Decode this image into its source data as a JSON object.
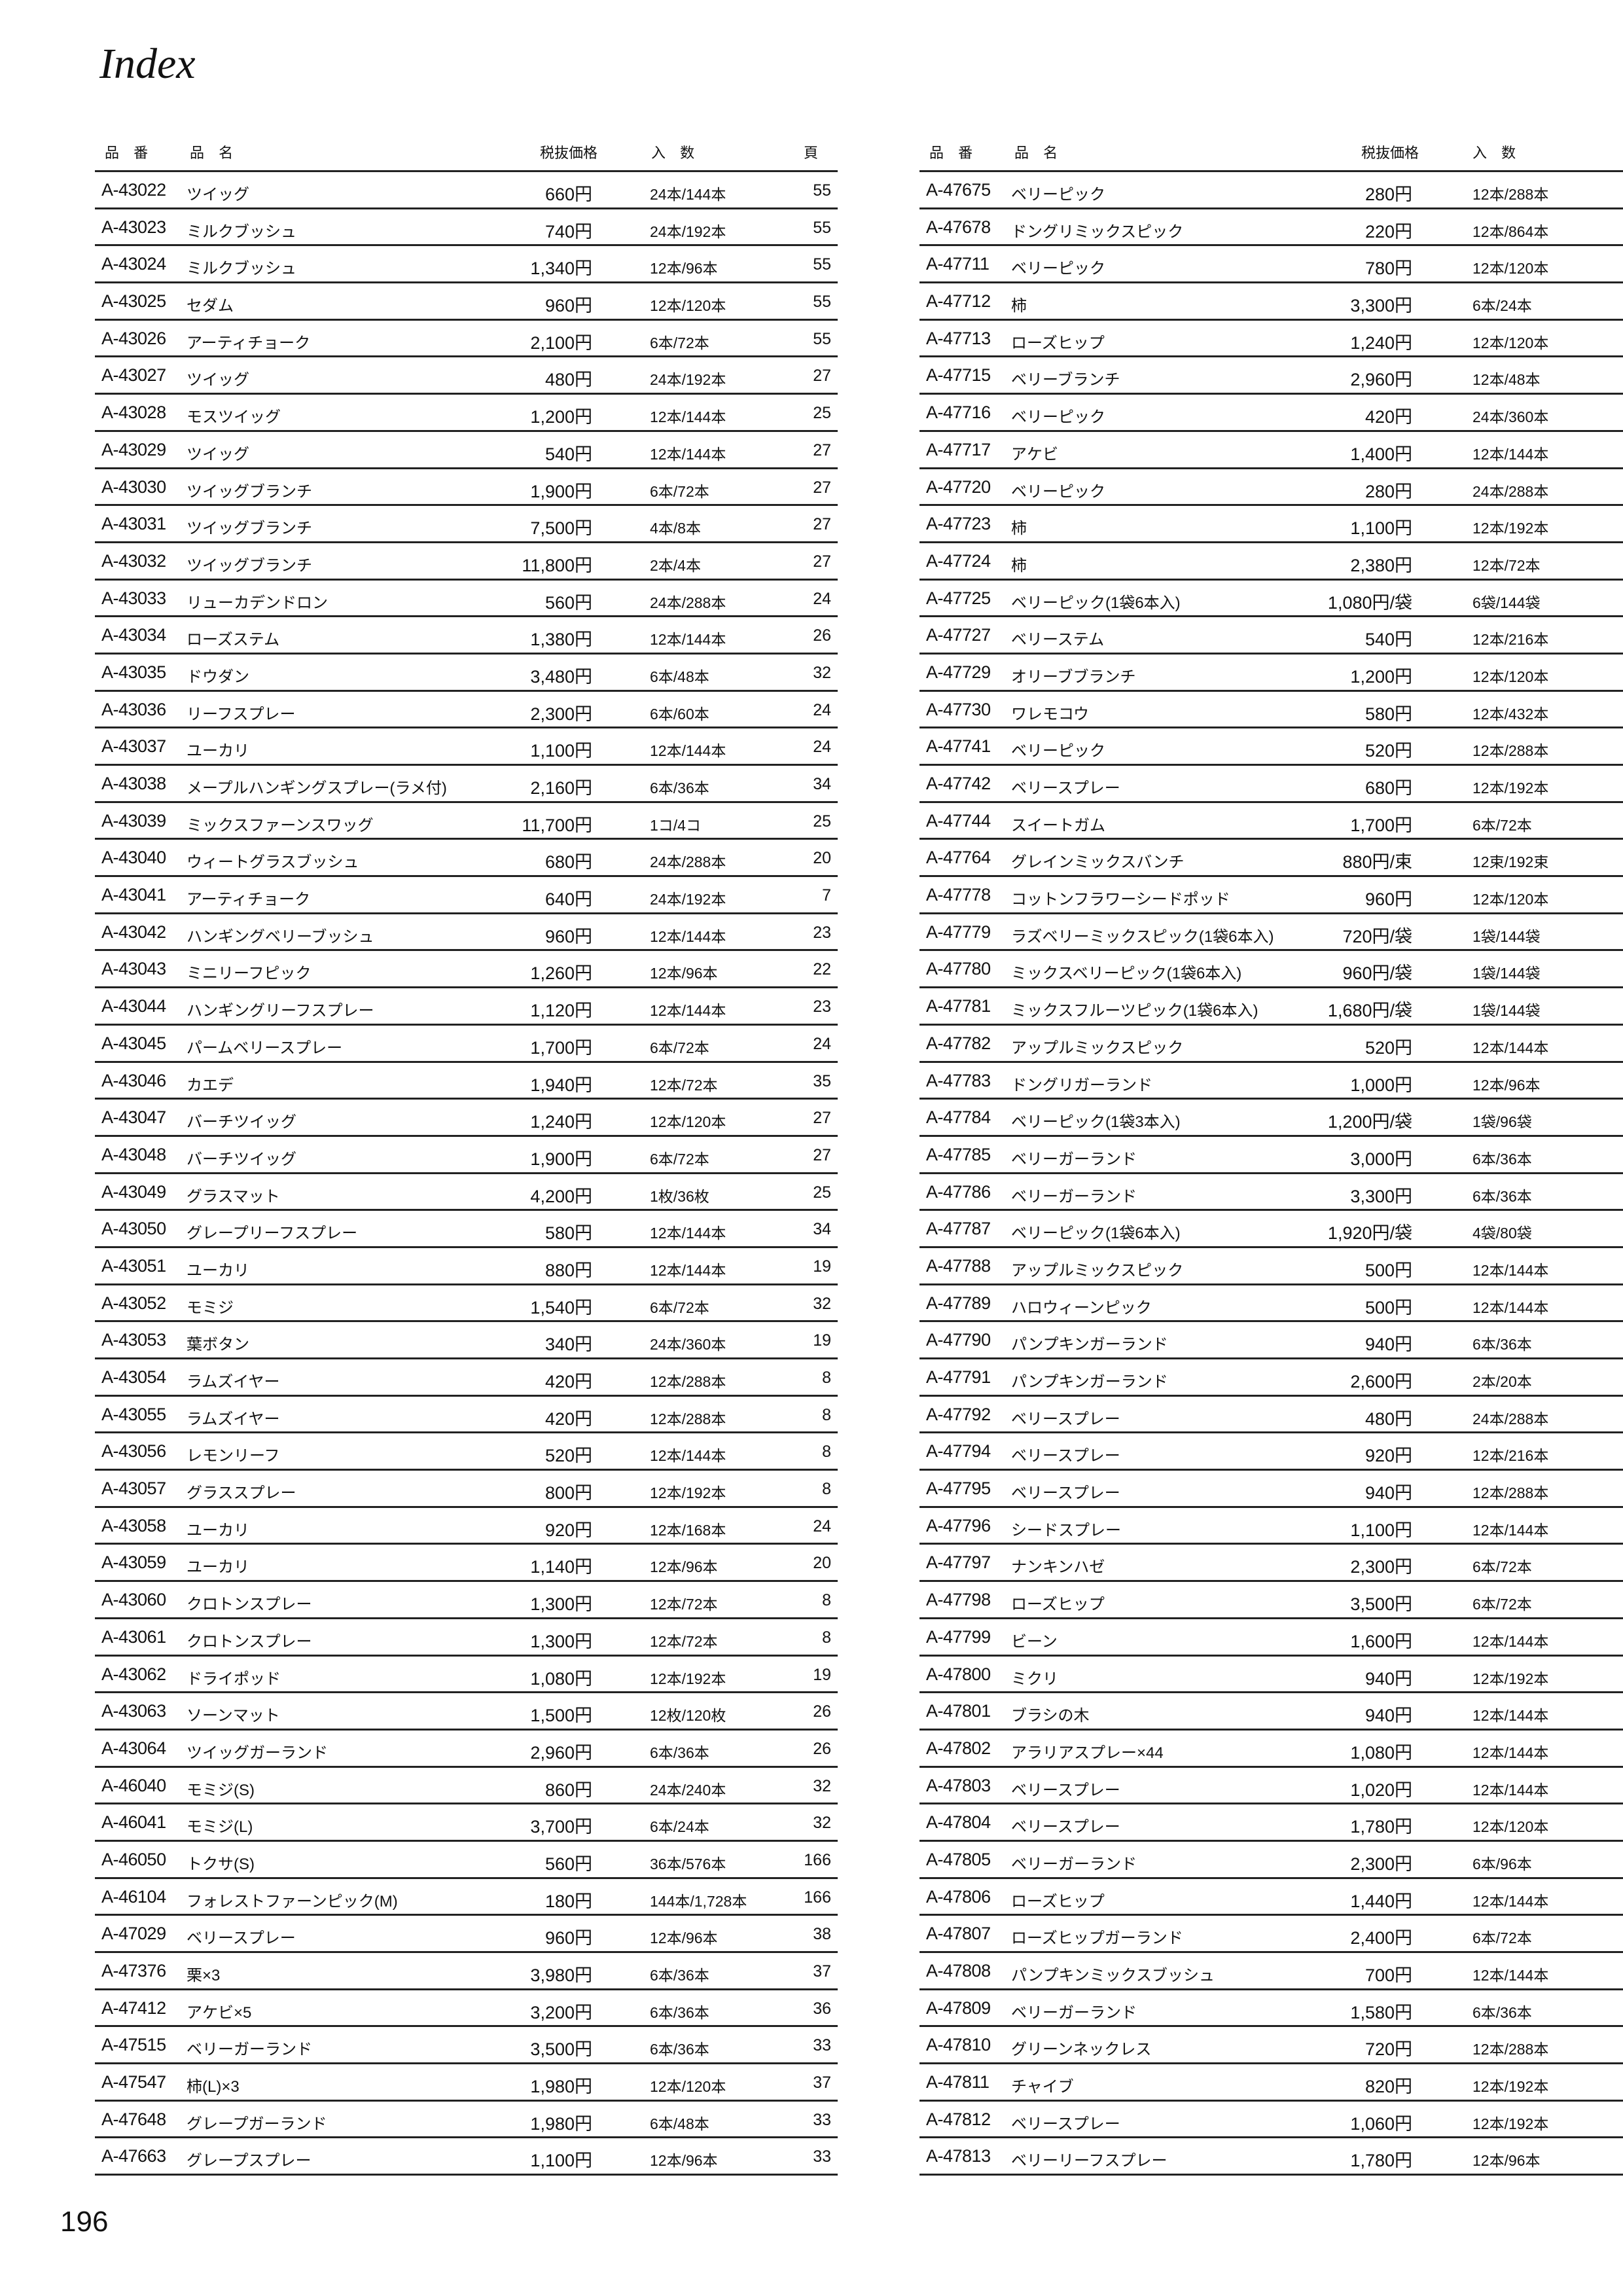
{
  "title": "Index",
  "page_number": "196",
  "headers": {
    "code": "品 番",
    "name": "品 名",
    "price": "税抜価格",
    "qty": "入 数",
    "page": "頁"
  },
  "left_rows": [
    [
      "A-43022",
      "ツイッグ",
      "660円",
      "24本/144本",
      "55"
    ],
    [
      "A-43023",
      "ミルクブッシュ",
      "740円",
      "24本/192本",
      "55"
    ],
    [
      "A-43024",
      "ミルクブッシュ",
      "1,340円",
      "12本/96本",
      "55"
    ],
    [
      "A-43025",
      "セダム",
      "960円",
      "12本/120本",
      "55"
    ],
    [
      "A-43026",
      "アーティチョーク",
      "2,100円",
      "6本/72本",
      "55"
    ],
    [
      "A-43027",
      "ツイッグ",
      "480円",
      "24本/192本",
      "27"
    ],
    [
      "A-43028",
      "モスツイッグ",
      "1,200円",
      "12本/144本",
      "25"
    ],
    [
      "A-43029",
      "ツイッグ",
      "540円",
      "12本/144本",
      "27"
    ],
    [
      "A-43030",
      "ツイッグブランチ",
      "1,900円",
      "6本/72本",
      "27"
    ],
    [
      "A-43031",
      "ツイッグブランチ",
      "7,500円",
      "4本/8本",
      "27"
    ],
    [
      "A-43032",
      "ツイッグブランチ",
      "11,800円",
      "2本/4本",
      "27"
    ],
    [
      "A-43033",
      "リューカデンドロン",
      "560円",
      "24本/288本",
      "24"
    ],
    [
      "A-43034",
      "ローズステム",
      "1,380円",
      "12本/144本",
      "26"
    ],
    [
      "A-43035",
      "ドウダン",
      "3,480円",
      "6本/48本",
      "32"
    ],
    [
      "A-43036",
      "リーフスプレー",
      "2,300円",
      "6本/60本",
      "24"
    ],
    [
      "A-43037",
      "ユーカリ",
      "1,100円",
      "12本/144本",
      "24"
    ],
    [
      "A-43038",
      "メープルハンギングスプレー(ラメ付)",
      "2,160円",
      "6本/36本",
      "34"
    ],
    [
      "A-43039",
      "ミックスファーンスワッグ",
      "11,700円",
      "1コ/4コ",
      "25"
    ],
    [
      "A-43040",
      "ウィートグラスブッシュ",
      "680円",
      "24本/288本",
      "20"
    ],
    [
      "A-43041",
      "アーティチョーク",
      "640円",
      "24本/192本",
      "7"
    ],
    [
      "A-43042",
      "ハンギングベリーブッシュ",
      "960円",
      "12本/144本",
      "23"
    ],
    [
      "A-43043",
      "ミニリーフピック",
      "1,260円",
      "12本/96本",
      "22"
    ],
    [
      "A-43044",
      "ハンギングリーフスプレー",
      "1,120円",
      "12本/144本",
      "23"
    ],
    [
      "A-43045",
      "パームベリースプレー",
      "1,700円",
      "6本/72本",
      "24"
    ],
    [
      "A-43046",
      "カエデ",
      "1,940円",
      "12本/72本",
      "35"
    ],
    [
      "A-43047",
      "バーチツイッグ",
      "1,240円",
      "12本/120本",
      "27"
    ],
    [
      "A-43048",
      "バーチツイッグ",
      "1,900円",
      "6本/72本",
      "27"
    ],
    [
      "A-43049",
      "グラスマット",
      "4,200円",
      "1枚/36枚",
      "25"
    ],
    [
      "A-43050",
      "グレープリーフスプレー",
      "580円",
      "12本/144本",
      "34"
    ],
    [
      "A-43051",
      "ユーカリ",
      "880円",
      "12本/144本",
      "19"
    ],
    [
      "A-43052",
      "モミジ",
      "1,540円",
      "6本/72本",
      "32"
    ],
    [
      "A-43053",
      "葉ボタン",
      "340円",
      "24本/360本",
      "19"
    ],
    [
      "A-43054",
      "ラムズイヤー",
      "420円",
      "12本/288本",
      "8"
    ],
    [
      "A-43055",
      "ラムズイヤー",
      "420円",
      "12本/288本",
      "8"
    ],
    [
      "A-43056",
      "レモンリーフ",
      "520円",
      "12本/144本",
      "8"
    ],
    [
      "A-43057",
      "グラススプレー",
      "800円",
      "12本/192本",
      "8"
    ],
    [
      "A-43058",
      "ユーカリ",
      "920円",
      "12本/168本",
      "24"
    ],
    [
      "A-43059",
      "ユーカリ",
      "1,140円",
      "12本/96本",
      "20"
    ],
    [
      "A-43060",
      "クロトンスプレー",
      "1,300円",
      "12本/72本",
      "8"
    ],
    [
      "A-43061",
      "クロトンスプレー",
      "1,300円",
      "12本/72本",
      "8"
    ],
    [
      "A-43062",
      "ドライポッド",
      "1,080円",
      "12本/192本",
      "19"
    ],
    [
      "A-43063",
      "ソーンマット",
      "1,500円",
      "12枚/120枚",
      "26"
    ],
    [
      "A-43064",
      "ツイッグガーランド",
      "2,960円",
      "6本/36本",
      "26"
    ],
    [
      "A-46040",
      "モミジ(S)",
      "860円",
      "24本/240本",
      "32"
    ],
    [
      "A-46041",
      "モミジ(L)",
      "3,700円",
      "6本/24本",
      "32"
    ],
    [
      "A-46050",
      "トクサ(S)",
      "560円",
      "36本/576本",
      "166"
    ],
    [
      "A-46104",
      "フォレストファーンピック(M)",
      "180円",
      "144本/1,728本",
      "166"
    ],
    [
      "A-47029",
      "ベリースプレー",
      "960円",
      "12本/96本",
      "38"
    ],
    [
      "A-47376",
      "栗×3",
      "3,980円",
      "6本/36本",
      "37"
    ],
    [
      "A-47412",
      "アケビ×5",
      "3,200円",
      "6本/36本",
      "36"
    ],
    [
      "A-47515",
      "ベリーガーランド",
      "3,500円",
      "6本/36本",
      "33"
    ],
    [
      "A-47547",
      "柿(L)×3",
      "1,980円",
      "12本/120本",
      "37"
    ],
    [
      "A-47648",
      "グレープガーランド",
      "1,980円",
      "6本/48本",
      "33"
    ],
    [
      "A-47663",
      "グレープスプレー",
      "1,100円",
      "12本/96本",
      "33"
    ]
  ],
  "right_rows": [
    [
      "A-47675",
      "ベリーピック",
      "280円",
      "12本/288本"
    ],
    [
      "A-47678",
      "ドングリミックスピック",
      "220円",
      "12本/864本"
    ],
    [
      "A-47711",
      "ベリーピック",
      "780円",
      "12本/120本"
    ],
    [
      "A-47712",
      "柿",
      "3,300円",
      "6本/24本"
    ],
    [
      "A-47713",
      "ローズヒップ",
      "1,240円",
      "12本/120本"
    ],
    [
      "A-47715",
      "ベリーブランチ",
      "2,960円",
      "12本/48本"
    ],
    [
      "A-47716",
      "ベリーピック",
      "420円",
      "24本/360本"
    ],
    [
      "A-47717",
      "アケビ",
      "1,400円",
      "12本/144本"
    ],
    [
      "A-47720",
      "ベリーピック",
      "280円",
      "24本/288本"
    ],
    [
      "A-47723",
      "柿",
      "1,100円",
      "12本/192本"
    ],
    [
      "A-47724",
      "柿",
      "2,380円",
      "12本/72本"
    ],
    [
      "A-47725",
      "ベリーピック(1袋6本入)",
      "1,080円/袋",
      "6袋/144袋"
    ],
    [
      "A-47727",
      "ベリーステム",
      "540円",
      "12本/216本"
    ],
    [
      "A-47729",
      "オリーブブランチ",
      "1,200円",
      "12本/120本"
    ],
    [
      "A-47730",
      "ワレモコウ",
      "580円",
      "12本/432本"
    ],
    [
      "A-47741",
      "ベリーピック",
      "520円",
      "12本/288本"
    ],
    [
      "A-47742",
      "ベリースプレー",
      "680円",
      "12本/192本"
    ],
    [
      "A-47744",
      "スイートガム",
      "1,700円",
      "6本/72本"
    ],
    [
      "A-47764",
      "グレインミックスバンチ",
      "880円/束",
      "12束/192束"
    ],
    [
      "A-47778",
      "コットンフラワーシードポッド",
      "960円",
      "12本/120本"
    ],
    [
      "A-47779",
      "ラズベリーミックスピック(1袋6本入)",
      "720円/袋",
      "1袋/144袋"
    ],
    [
      "A-47780",
      "ミックスベリーピック(1袋6本入)",
      "960円/袋",
      "1袋/144袋"
    ],
    [
      "A-47781",
      "ミックスフルーツピック(1袋6本入)",
      "1,680円/袋",
      "1袋/144袋"
    ],
    [
      "A-47782",
      "アップルミックスピック",
      "520円",
      "12本/144本"
    ],
    [
      "A-47783",
      "ドングリガーランド",
      "1,000円",
      "12本/96本"
    ],
    [
      "A-47784",
      "ベリーピック(1袋3本入)",
      "1,200円/袋",
      "1袋/96袋"
    ],
    [
      "A-47785",
      "ベリーガーランド",
      "3,000円",
      "6本/36本"
    ],
    [
      "A-47786",
      "ベリーガーランド",
      "3,300円",
      "6本/36本"
    ],
    [
      "A-47787",
      "ベリーピック(1袋6本入)",
      "1,920円/袋",
      "4袋/80袋"
    ],
    [
      "A-47788",
      "アップルミックスピック",
      "500円",
      "12本/144本"
    ],
    [
      "A-47789",
      "ハロウィーンピック",
      "500円",
      "12本/144本"
    ],
    [
      "A-47790",
      "パンプキンガーランド",
      "940円",
      "6本/36本"
    ],
    [
      "A-47791",
      "パンプキンガーランド",
      "2,600円",
      "2本/20本"
    ],
    [
      "A-47792",
      "ベリースプレー",
      "480円",
      "24本/288本"
    ],
    [
      "A-47794",
      "ベリースプレー",
      "920円",
      "12本/216本"
    ],
    [
      "A-47795",
      "ベリースプレー",
      "940円",
      "12本/288本"
    ],
    [
      "A-47796",
      "シードスプレー",
      "1,100円",
      "12本/144本"
    ],
    [
      "A-47797",
      "ナンキンハゼ",
      "2,300円",
      "6本/72本"
    ],
    [
      "A-47798",
      "ローズヒップ",
      "3,500円",
      "6本/72本"
    ],
    [
      "A-47799",
      "ビーン",
      "1,600円",
      "12本/144本"
    ],
    [
      "A-47800",
      "ミクリ",
      "940円",
      "12本/192本"
    ],
    [
      "A-47801",
      "ブラシの木",
      "940円",
      "12本/144本"
    ],
    [
      "A-47802",
      "アラリアスプレー×44",
      "1,080円",
      "12本/144本"
    ],
    [
      "A-47803",
      "ベリースプレー",
      "1,020円",
      "12本/144本"
    ],
    [
      "A-47804",
      "ベリースプレー",
      "1,780円",
      "12本/120本"
    ],
    [
      "A-47805",
      "ベリーガーランド",
      "2,300円",
      "6本/96本"
    ],
    [
      "A-47806",
      "ローズヒップ",
      "1,440円",
      "12本/144本"
    ],
    [
      "A-47807",
      "ローズヒップガーランド",
      "2,400円",
      "6本/72本"
    ],
    [
      "A-47808",
      "パンプキンミックスブッシュ",
      "700円",
      "12本/144本"
    ],
    [
      "A-47809",
      "ベリーガーランド",
      "1,580円",
      "6本/36本"
    ],
    [
      "A-47810",
      "グリーンネックレス",
      "720円",
      "12本/288本"
    ],
    [
      "A-47811",
      "チャイブ",
      "820円",
      "12本/192本"
    ],
    [
      "A-47812",
      "ベリースプレー",
      "1,060円",
      "12本/192本"
    ],
    [
      "A-47813",
      "ベリーリーフスプレー",
      "1,780円",
      "12本/96本"
    ]
  ]
}
